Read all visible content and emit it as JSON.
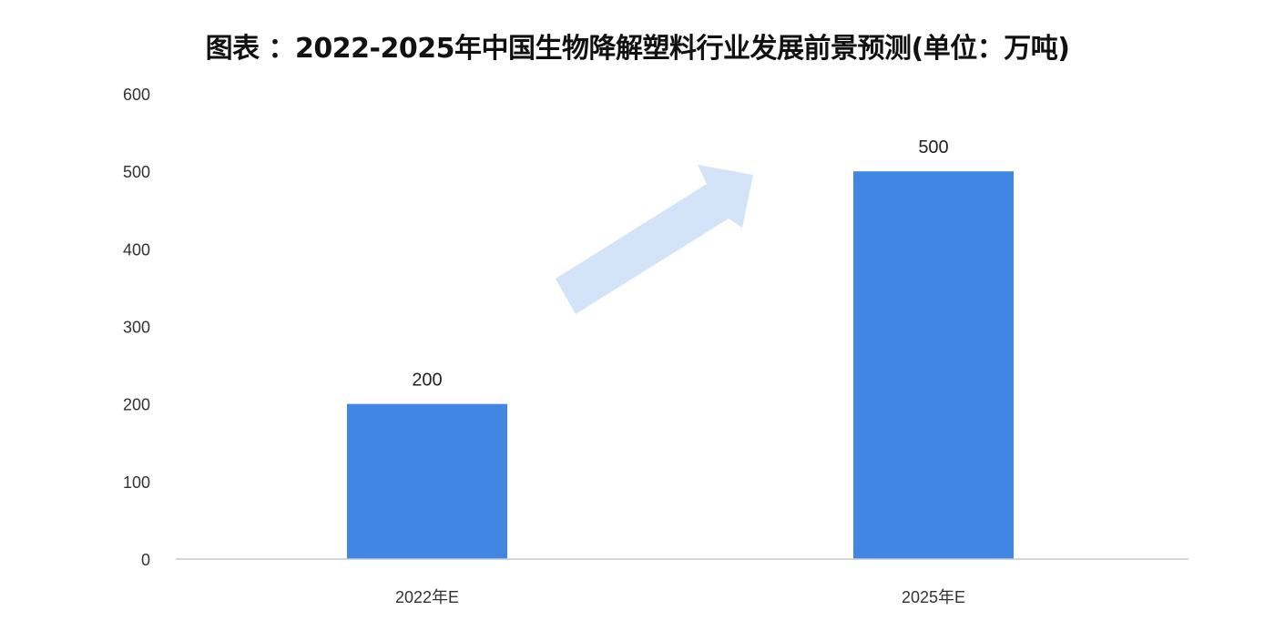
{
  "chart_data": {
    "type": "bar",
    "title": "图表 ：2022-2025年中国生物降解塑料行业发展前景预测(单位：万吨)",
    "categories": [
      "2022年E",
      "2025年E"
    ],
    "values": [
      200,
      500
    ],
    "data_labels": [
      "200",
      "500"
    ],
    "xlabel": "",
    "ylabel": "",
    "ylim": [
      0,
      600
    ],
    "yticks": [
      "0",
      "100",
      "200",
      "300",
      "400",
      "500",
      "600"
    ],
    "grid": false,
    "bar_color": "#4286e3",
    "arrow_color": "#d3e3f8",
    "annotation": "upward-trend-arrow"
  }
}
